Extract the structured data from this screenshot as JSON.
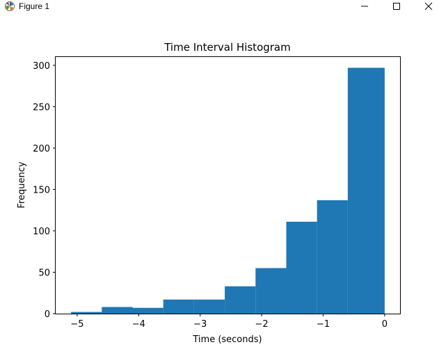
{
  "window": {
    "title": "Figure 1",
    "icons": {
      "app": "matplotlib-figure-icon",
      "minimize": "minimize-icon",
      "maximize": "maximize-icon",
      "close": "close-icon"
    }
  },
  "chart_data": {
    "type": "bar",
    "title": "Time Interval Histogram",
    "xlabel": "Time (seconds)",
    "ylabel": "Frequency",
    "xlim": [
      -5.35,
      0.25
    ],
    "ylim": [
      0,
      310
    ],
    "grid": false,
    "bar_color": "#1f77b4",
    "bins": [
      {
        "x0": -5.1,
        "x1": -4.6,
        "value": 2
      },
      {
        "x0": -4.6,
        "x1": -4.1,
        "value": 8
      },
      {
        "x0": -4.1,
        "x1": -3.6,
        "value": 7
      },
      {
        "x0": -3.6,
        "x1": -3.1,
        "value": 17
      },
      {
        "x0": -3.1,
        "x1": -2.6,
        "value": 17
      },
      {
        "x0": -2.6,
        "x1": -2.1,
        "value": 33
      },
      {
        "x0": -2.1,
        "x1": -1.6,
        "value": 55
      },
      {
        "x0": -1.6,
        "x1": -1.1,
        "value": 111
      },
      {
        "x0": -1.1,
        "x1": -0.6,
        "value": 137
      },
      {
        "x0": -0.6,
        "x1": 0.0,
        "value": 297
      }
    ],
    "xticks": [
      {
        "value": -5,
        "label": "−5"
      },
      {
        "value": -4,
        "label": "−4"
      },
      {
        "value": -3,
        "label": "−3"
      },
      {
        "value": -2,
        "label": "−2"
      },
      {
        "value": -1,
        "label": "−1"
      },
      {
        "value": 0,
        "label": "0"
      }
    ],
    "yticks": [
      {
        "value": 0,
        "label": "0"
      },
      {
        "value": 50,
        "label": "50"
      },
      {
        "value": 100,
        "label": "100"
      },
      {
        "value": 150,
        "label": "150"
      },
      {
        "value": 200,
        "label": "200"
      },
      {
        "value": 250,
        "label": "250"
      },
      {
        "value": 300,
        "label": "300"
      }
    ]
  }
}
